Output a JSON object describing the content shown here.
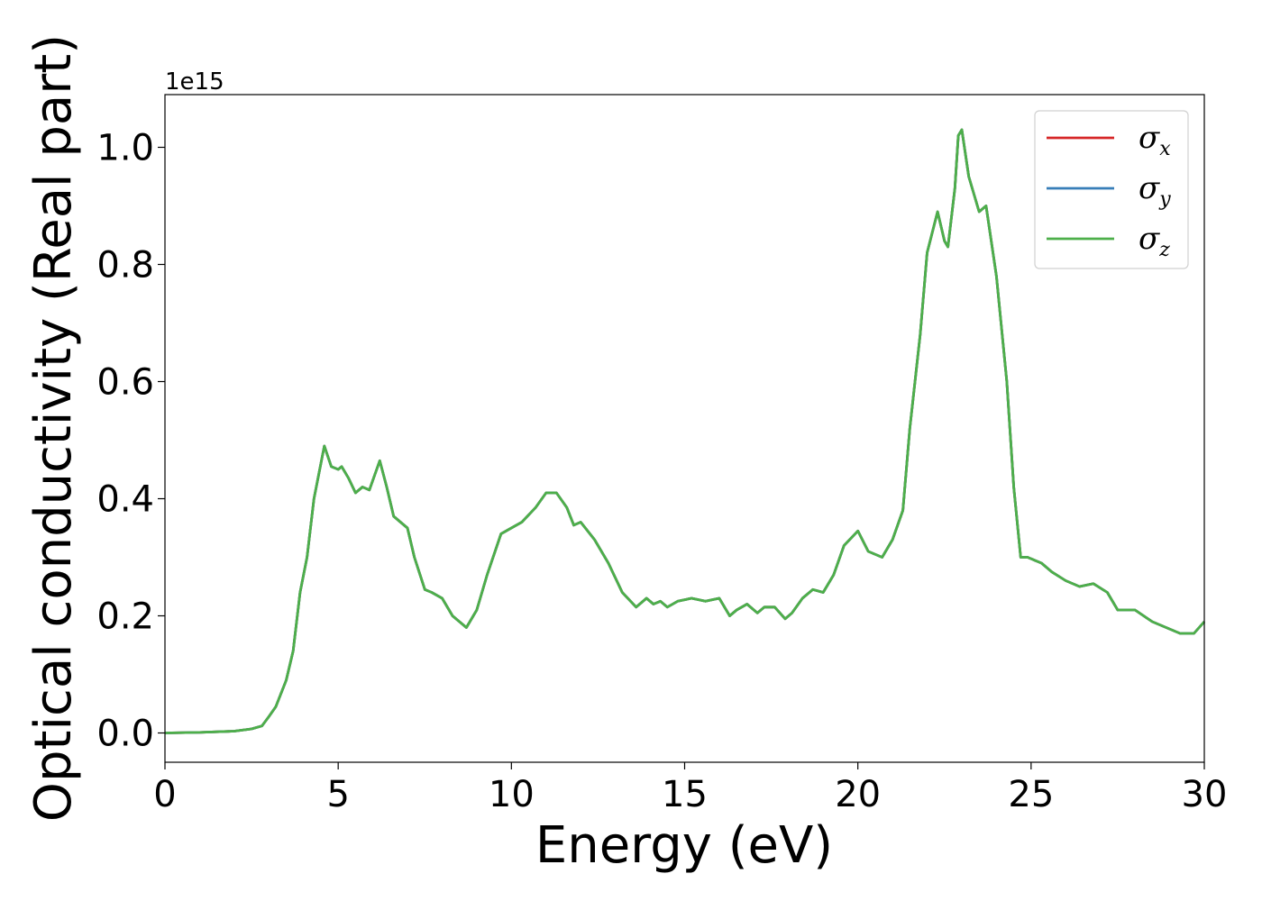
{
  "chart_data": {
    "type": "line",
    "xlabel": "Energy (eV)",
    "ylabel": "Optical conductivity (Real part)",
    "y_offset_label": "1e15",
    "xlim": [
      0,
      30
    ],
    "ylim": [
      -0.05,
      1.09
    ],
    "x_ticks": [
      0,
      5,
      10,
      15,
      20,
      25,
      30
    ],
    "x_tick_labels": [
      "0",
      "5",
      "10",
      "15",
      "20",
      "25",
      "30"
    ],
    "y_ticks": [
      0.0,
      0.2,
      0.4,
      0.6,
      0.8,
      1.0
    ],
    "y_tick_labels": [
      "0.0",
      "0.2",
      "0.4",
      "0.6",
      "0.8",
      "1.0"
    ],
    "grid": false,
    "legend_position": "top-right",
    "x": [
      0,
      1,
      2,
      2.5,
      2.8,
      3.0,
      3.2,
      3.5,
      3.7,
      3.9,
      4.1,
      4.3,
      4.6,
      4.8,
      5.0,
      5.1,
      5.3,
      5.5,
      5.7,
      5.9,
      6.2,
      6.4,
      6.6,
      6.8,
      7.0,
      7.2,
      7.5,
      7.7,
      8.0,
      8.3,
      8.7,
      9.0,
      9.3,
      9.7,
      10.0,
      10.3,
      10.7,
      11.0,
      11.3,
      11.6,
      11.8,
      12.0,
      12.4,
      12.8,
      13.2,
      13.6,
      13.9,
      14.1,
      14.3,
      14.5,
      14.8,
      15.2,
      15.6,
      16.0,
      16.3,
      16.5,
      16.8,
      17.1,
      17.3,
      17.6,
      17.9,
      18.1,
      18.4,
      18.7,
      19.0,
      19.3,
      19.6,
      20.0,
      20.3,
      20.7,
      21.0,
      21.3,
      21.5,
      21.8,
      22.0,
      22.3,
      22.5,
      22.6,
      22.8,
      22.9,
      23.0,
      23.2,
      23.5,
      23.7,
      24.0,
      24.3,
      24.5,
      24.7,
      24.9,
      25.1,
      25.3,
      25.6,
      26.0,
      26.4,
      26.8,
      27.2,
      27.5,
      28.0,
      28.5,
      28.9,
      29.3,
      29.7,
      30.0
    ],
    "series": [
      {
        "name": "σx",
        "color": "#d62728",
        "values": [
          0,
          0.001,
          0.003,
          0.007,
          0.012,
          0.028,
          0.045,
          0.09,
          0.14,
          0.24,
          0.3,
          0.4,
          0.49,
          0.455,
          0.45,
          0.455,
          0.435,
          0.41,
          0.42,
          0.415,
          0.465,
          0.42,
          0.37,
          0.36,
          0.35,
          0.3,
          0.245,
          0.24,
          0.23,
          0.2,
          0.18,
          0.21,
          0.27,
          0.34,
          0.35,
          0.36,
          0.385,
          0.41,
          0.41,
          0.385,
          0.355,
          0.36,
          0.33,
          0.29,
          0.24,
          0.215,
          0.23,
          0.22,
          0.225,
          0.215,
          0.225,
          0.23,
          0.225,
          0.23,
          0.2,
          0.21,
          0.22,
          0.205,
          0.215,
          0.215,
          0.195,
          0.205,
          0.23,
          0.245,
          0.24,
          0.27,
          0.32,
          0.345,
          0.31,
          0.3,
          0.33,
          0.38,
          0.52,
          0.68,
          0.82,
          0.89,
          0.84,
          0.83,
          0.93,
          1.02,
          1.03,
          0.95,
          0.89,
          0.9,
          0.78,
          0.6,
          0.42,
          0.3,
          0.3,
          0.295,
          0.29,
          0.275,
          0.26,
          0.25,
          0.255,
          0.24,
          0.21,
          0.21,
          0.19,
          0.18,
          0.17,
          0.17,
          0.19
        ]
      },
      {
        "name": "σy",
        "color": "#377eb8",
        "values": [
          0,
          0.001,
          0.003,
          0.007,
          0.012,
          0.028,
          0.045,
          0.09,
          0.14,
          0.24,
          0.3,
          0.4,
          0.49,
          0.455,
          0.45,
          0.455,
          0.435,
          0.41,
          0.42,
          0.415,
          0.465,
          0.42,
          0.37,
          0.36,
          0.35,
          0.3,
          0.245,
          0.24,
          0.23,
          0.2,
          0.18,
          0.21,
          0.27,
          0.34,
          0.35,
          0.36,
          0.385,
          0.41,
          0.41,
          0.385,
          0.355,
          0.36,
          0.33,
          0.29,
          0.24,
          0.215,
          0.23,
          0.22,
          0.225,
          0.215,
          0.225,
          0.23,
          0.225,
          0.23,
          0.2,
          0.21,
          0.22,
          0.205,
          0.215,
          0.215,
          0.195,
          0.205,
          0.23,
          0.245,
          0.24,
          0.27,
          0.32,
          0.345,
          0.31,
          0.3,
          0.33,
          0.38,
          0.52,
          0.68,
          0.82,
          0.89,
          0.84,
          0.83,
          0.93,
          1.02,
          1.03,
          0.95,
          0.89,
          0.9,
          0.78,
          0.6,
          0.42,
          0.3,
          0.3,
          0.295,
          0.29,
          0.275,
          0.26,
          0.25,
          0.255,
          0.24,
          0.21,
          0.21,
          0.19,
          0.18,
          0.17,
          0.17,
          0.19
        ]
      },
      {
        "name": "σz",
        "color": "#4daf4a",
        "values": [
          0,
          0.001,
          0.003,
          0.007,
          0.012,
          0.028,
          0.045,
          0.09,
          0.14,
          0.24,
          0.3,
          0.4,
          0.49,
          0.455,
          0.45,
          0.455,
          0.435,
          0.41,
          0.42,
          0.415,
          0.465,
          0.42,
          0.37,
          0.36,
          0.35,
          0.3,
          0.245,
          0.24,
          0.23,
          0.2,
          0.18,
          0.21,
          0.27,
          0.34,
          0.35,
          0.36,
          0.385,
          0.41,
          0.41,
          0.385,
          0.355,
          0.36,
          0.33,
          0.29,
          0.24,
          0.215,
          0.23,
          0.22,
          0.225,
          0.215,
          0.225,
          0.23,
          0.225,
          0.23,
          0.2,
          0.21,
          0.22,
          0.205,
          0.215,
          0.215,
          0.195,
          0.205,
          0.23,
          0.245,
          0.24,
          0.27,
          0.32,
          0.345,
          0.31,
          0.3,
          0.33,
          0.38,
          0.52,
          0.68,
          0.82,
          0.89,
          0.84,
          0.83,
          0.93,
          1.02,
          1.03,
          0.95,
          0.89,
          0.9,
          0.78,
          0.6,
          0.42,
          0.3,
          0.3,
          0.295,
          0.29,
          0.275,
          0.26,
          0.25,
          0.255,
          0.24,
          0.21,
          0.21,
          0.19,
          0.18,
          0.17,
          0.17,
          0.19
        ]
      }
    ],
    "legend": [
      {
        "symbol": "σ",
        "sub": "x"
      },
      {
        "symbol": "σ",
        "sub": "y"
      },
      {
        "symbol": "σ",
        "sub": "z"
      }
    ]
  }
}
